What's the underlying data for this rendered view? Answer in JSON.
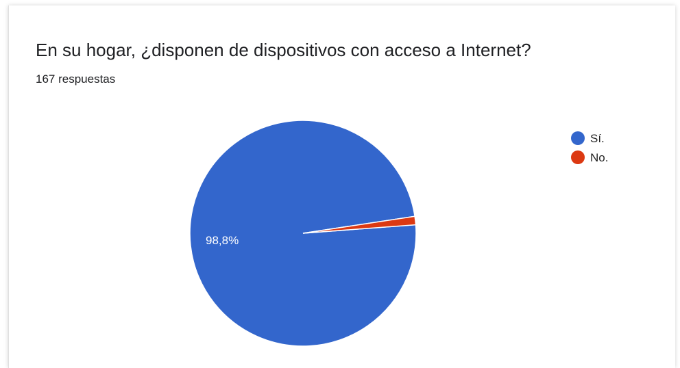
{
  "header": {
    "title": "En su hogar, ¿disponen de dispositivos con acceso a Internet?",
    "subtitle": "167 respuestas"
  },
  "chart_data": {
    "type": "pie",
    "title": "En su hogar, ¿disponen de dispositivos con acceso a Internet?",
    "total_responses": 167,
    "legend_position": "right",
    "categories": [
      "Sí.",
      "No."
    ],
    "values": [
      98.8,
      1.2
    ],
    "colors": [
      "#3366cc",
      "#dc3912"
    ],
    "slice_labels": [
      "98,8%",
      ""
    ]
  }
}
